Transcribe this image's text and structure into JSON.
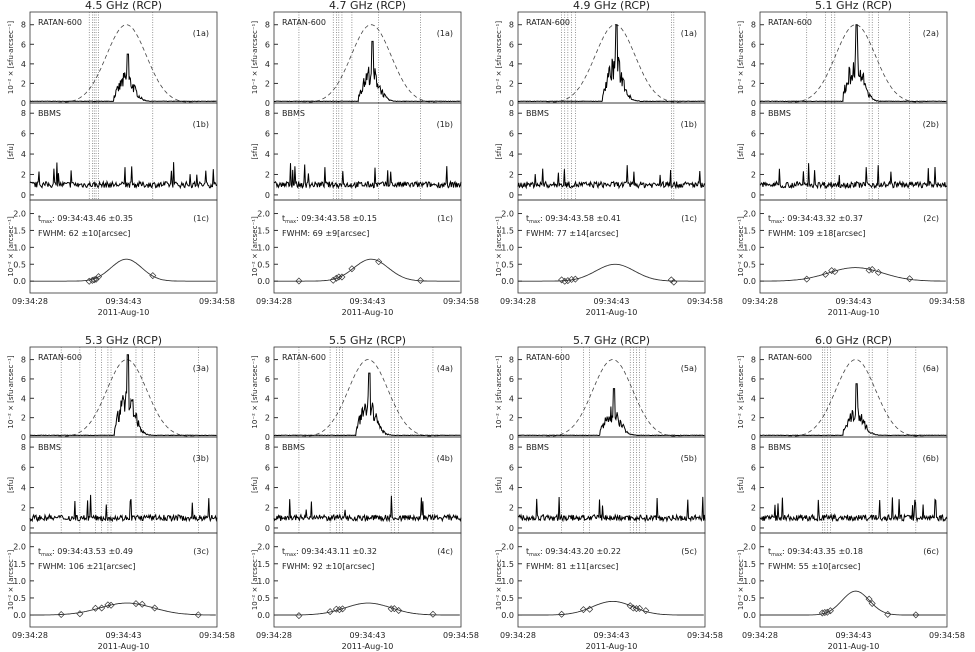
{
  "chart_data": {
    "type": "line",
    "date_label": "2011-Aug-10",
    "x_ticks": [
      "09:34:28",
      "09:34:43",
      "09:34:58"
    ],
    "x_range_seconds_after_09_34": [
      28,
      58
    ],
    "top_ylabel": "10⁻² × [sfu·arcsec⁻¹]",
    "mid_ylabel": "[sfu]",
    "bot_ylabel": "10⁻² × [arcsec⁻¹]",
    "top_label": "RATAN-600",
    "mid_label": "BBMS",
    "top_yticks": [
      "0",
      "2",
      "4",
      "6",
      "8"
    ],
    "mid_yticks": [
      "0",
      "2",
      "4",
      "6",
      "8"
    ],
    "bot_yticks": [
      "0.0",
      "0.5",
      "1.0",
      "1.5",
      "2.0"
    ],
    "tmax_prefix": "t",
    "tmax_sub": "max",
    "fwhm_prefix": "FWHM:",
    "panels": [
      {
        "title": "4.5 GHz (RCP)",
        "la": "(1a)",
        "lb": "(1b)",
        "lc": "(1c)",
        "tmax": "09:34:43.46 ±0.35",
        "fwhm": "62 ±10[arcsec]",
        "fit_peak": 0.65,
        "burst_peak": 5.0,
        "lines": [
          37.5,
          38,
          38.3,
          38.6,
          39,
          47.7
        ]
      },
      {
        "title": "4.7 GHz (RCP)",
        "la": "(1a)",
        "lb": "(1b)",
        "lc": "(1c)",
        "tmax": "09:34:43.58 ±0.15",
        "fwhm": "69 ±9[arcsec]",
        "fit_peak": 0.65,
        "burst_peak": 6.3,
        "lines": [
          32,
          37.5,
          38,
          38.4,
          38.9,
          40.5,
          44.8,
          51.5
        ]
      },
      {
        "title": "4.9 GHz (RCP)",
        "la": "(1a)",
        "lb": "(1b)",
        "lc": "(1c)",
        "tmax": "09:34:43.58 ±0.41",
        "fwhm": "77 ±14[arcsec]",
        "fit_peak": 0.5,
        "burst_peak": 8.0,
        "lines": [
          35,
          35.5,
          36,
          36.6,
          37.2,
          52.6,
          53
        ]
      },
      {
        "title": "5.1 GHz (RCP)",
        "la": "(2a)",
        "lb": "(2b)",
        "lc": "(2c)",
        "tmax": "09:34:43.32 ±0.37",
        "fwhm": "109 ±18[arcsec]",
        "fit_peak": 0.4,
        "burst_peak": 8.0,
        "lines": [
          35.5,
          38.5,
          39.5,
          40,
          45.5,
          46,
          47,
          52
        ]
      },
      {
        "title": "5.3 GHz (RCP)",
        "la": "(3a)",
        "lb": "(3b)",
        "lc": "(3c)",
        "tmax": "09:34:43.53 ±0.49",
        "fwhm": "106 ±21[arcsec]",
        "fit_peak": 0.35,
        "burst_peak": 8.5,
        "lines": [
          33,
          36,
          38.5,
          39.5,
          40.5,
          41,
          45,
          46,
          48,
          55
        ]
      },
      {
        "title": "5.5 GHz (RCP)",
        "la": "(4a)",
        "lb": "(4b)",
        "lc": "(4c)",
        "tmax": "09:34:43.11 ±0.32",
        "fwhm": "92 ±10[arcsec]",
        "fit_peak": 0.35,
        "burst_peak": 6.6,
        "lines": [
          32,
          37,
          38,
          38.5,
          39,
          46.8,
          47.3,
          48,
          53.5
        ]
      },
      {
        "title": "5.7 GHz (RCP)",
        "la": "(5a)",
        "lb": "(5b)",
        "lc": "(5c)",
        "tmax": "09:34:43.20 ±0.22",
        "fwhm": "81 ±11[arcsec]",
        "fit_peak": 0.4,
        "burst_peak": 5.0,
        "lines": [
          35,
          38.5,
          39.5,
          46,
          46.5,
          47,
          47.5,
          48.5
        ]
      },
      {
        "title": "6.0 GHz (RCP)",
        "la": "(6a)",
        "lb": "(6b)",
        "lc": "(6c)",
        "tmax": "09:34:43.35 ±0.18",
        "fwhm": "55 ±10[arcsec]",
        "fit_peak": 0.7,
        "burst_peak": 5.5,
        "lines": [
          38,
          38.4,
          38.8,
          39.3,
          45.5,
          46,
          48.5,
          53
        ]
      }
    ]
  }
}
